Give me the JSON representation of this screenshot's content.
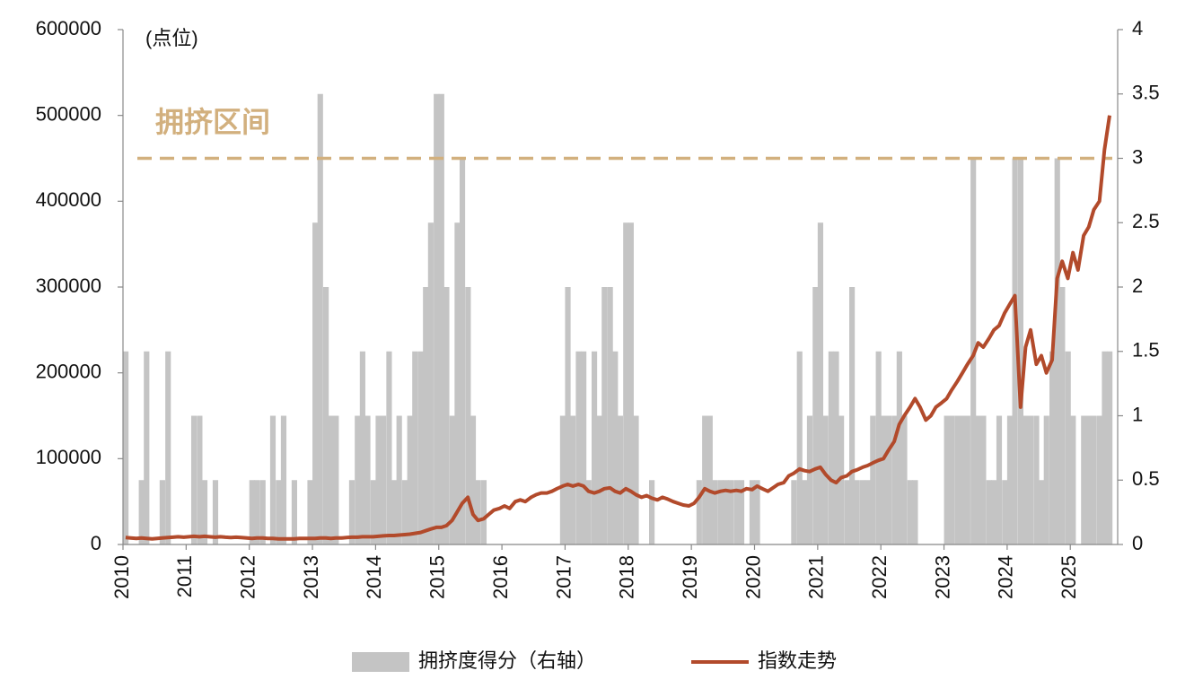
{
  "chart_data": {
    "type": "bar_line",
    "y_label": "(点位)",
    "xlim": [
      2010,
      2025.75
    ],
    "xticks": [
      2010,
      2011,
      2012,
      2013,
      2014,
      2015,
      2016,
      2017,
      2018,
      2019,
      2020,
      2021,
      2022,
      2023,
      2024,
      2025
    ],
    "ylim": [
      0,
      600000
    ],
    "yticks": [
      0,
      100000,
      200000,
      300000,
      400000,
      500000,
      600000
    ],
    "y2lim": [
      0,
      4
    ],
    "y2ticks": [
      0,
      0.5,
      1,
      1.5,
      2,
      2.5,
      3,
      3.5,
      4
    ],
    "reference_line": {
      "value": 3,
      "axis": "y2",
      "label": "拥挤区间",
      "color": "#d2b07e"
    },
    "legend": "bottom",
    "x": [
      2010.0,
      2010.08,
      2010.17,
      2010.25,
      2010.33,
      2010.42,
      2010.5,
      2010.58,
      2010.67,
      2010.75,
      2010.83,
      2010.92,
      2011.0,
      2011.08,
      2011.17,
      2011.25,
      2011.33,
      2011.42,
      2011.5,
      2011.58,
      2011.67,
      2011.75,
      2011.83,
      2011.92,
      2012.0,
      2012.08,
      2012.17,
      2012.25,
      2012.33,
      2012.42,
      2012.5,
      2012.58,
      2012.67,
      2012.75,
      2012.83,
      2012.92,
      2013.0,
      2013.08,
      2013.17,
      2013.25,
      2013.33,
      2013.42,
      2013.5,
      2013.58,
      2013.67,
      2013.75,
      2013.83,
      2013.92,
      2014.0,
      2014.08,
      2014.17,
      2014.25,
      2014.33,
      2014.42,
      2014.5,
      2014.58,
      2014.67,
      2014.75,
      2014.83,
      2014.92,
      2015.0,
      2015.08,
      2015.17,
      2015.25,
      2015.33,
      2015.42,
      2015.5,
      2015.58,
      2015.67,
      2015.75,
      2015.83,
      2015.92,
      2016.0,
      2016.08,
      2016.17,
      2016.25,
      2016.33,
      2016.42,
      2016.5,
      2016.58,
      2016.67,
      2016.75,
      2016.83,
      2016.92,
      2017.0,
      2017.08,
      2017.17,
      2017.25,
      2017.33,
      2017.42,
      2017.5,
      2017.58,
      2017.67,
      2017.75,
      2017.83,
      2017.92,
      2018.0,
      2018.08,
      2018.17,
      2018.25,
      2018.33,
      2018.42,
      2018.5,
      2018.58,
      2018.67,
      2018.75,
      2018.83,
      2018.92,
      2019.0,
      2019.08,
      2019.17,
      2019.25,
      2019.33,
      2019.42,
      2019.5,
      2019.58,
      2019.67,
      2019.75,
      2019.83,
      2019.92,
      2020.0,
      2020.08,
      2020.17,
      2020.25,
      2020.33,
      2020.42,
      2020.5,
      2020.58,
      2020.67,
      2020.75,
      2020.83,
      2020.92,
      2021.0,
      2021.08,
      2021.17,
      2021.25,
      2021.33,
      2021.42,
      2021.5,
      2021.58,
      2021.67,
      2021.75,
      2021.83,
      2021.92,
      2022.0,
      2022.08,
      2022.17,
      2022.25,
      2022.33,
      2022.42,
      2022.5,
      2022.58,
      2022.67,
      2022.75,
      2022.83,
      2022.92,
      2023.0,
      2023.08,
      2023.17,
      2023.25,
      2023.33,
      2023.42,
      2023.5,
      2023.58,
      2023.67,
      2023.75,
      2023.83,
      2023.92,
      2024.0,
      2024.08,
      2024.17,
      2024.25,
      2024.33,
      2024.42,
      2024.5,
      2024.58,
      2024.67,
      2024.75,
      2024.83,
      2024.92,
      2025.0,
      2025.08,
      2025.17,
      2025.25,
      2025.33,
      2025.42,
      2025.5,
      2025.58
    ],
    "series": [
      {
        "name": "拥挤度得分（右轴）",
        "type": "bar",
        "axis": "y2",
        "color": "#c4c4c4",
        "values": [
          1.5,
          0,
          0,
          0.5,
          1.5,
          0,
          0,
          0.5,
          1.5,
          0,
          0,
          0,
          0,
          1,
          1,
          0.5,
          0,
          0.5,
          0,
          0,
          0,
          0,
          0,
          0,
          0.5,
          0.5,
          0.5,
          0,
          1,
          0.5,
          1,
          0,
          0.5,
          0,
          0,
          0.5,
          2.5,
          3.5,
          2,
          1,
          1,
          0,
          0,
          0.5,
          1,
          1.5,
          1,
          0.5,
          1,
          1,
          1.5,
          0.5,
          1,
          0.5,
          1,
          1.5,
          1.5,
          2,
          2.5,
          3.5,
          3.5,
          2,
          1,
          2.5,
          3,
          2,
          1,
          0.5,
          0.5,
          0,
          0,
          0,
          0,
          0,
          0,
          0,
          0,
          0,
          0,
          0,
          0,
          0,
          0,
          1,
          2,
          1,
          1.5,
          1.5,
          0.5,
          1.5,
          1,
          2,
          2,
          1.5,
          1,
          2.5,
          2.5,
          1,
          0,
          0,
          0.5,
          0,
          0,
          0,
          0,
          0,
          0,
          0,
          0,
          0.5,
          1,
          1,
          0.5,
          0.5,
          0.5,
          0.5,
          0.5,
          0.5,
          0,
          0.5,
          0.5,
          0,
          0,
          0,
          0,
          0,
          0,
          0.5,
          1.5,
          0.5,
          1,
          2,
          2.5,
          1,
          1.5,
          1.5,
          1,
          0.5,
          2,
          0.5,
          0.5,
          0.5,
          1,
          1.5,
          1,
          1,
          1,
          1.5,
          1,
          0.5,
          0.5,
          0,
          0,
          0,
          0,
          0,
          1,
          1,
          1,
          1,
          1,
          3,
          1,
          1,
          0.5,
          0.5,
          1,
          0.5,
          1,
          3,
          3,
          1,
          1,
          1,
          0.5,
          1,
          1.5,
          3,
          2,
          1.5,
          1,
          0,
          1,
          1,
          1,
          1,
          1.5,
          1.5
        ]
      },
      {
        "name": "指数走势",
        "type": "line",
        "color": "#b24a2b",
        "values": [
          8000,
          7500,
          7000,
          7500,
          7000,
          6500,
          7000,
          7500,
          8000,
          8500,
          9000,
          8500,
          9000,
          9500,
          9000,
          9500,
          9000,
          8500,
          9000,
          8500,
          8000,
          8500,
          8000,
          7500,
          7000,
          7500,
          7500,
          7000,
          7000,
          6500,
          6500,
          6500,
          6500,
          7000,
          7000,
          7000,
          7000,
          7500,
          7500,
          7000,
          7500,
          7500,
          8000,
          8500,
          8500,
          9000,
          9000,
          9000,
          9500,
          10000,
          10500,
          10500,
          11000,
          11500,
          12000,
          13000,
          14000,
          16000,
          18000,
          20000,
          20000,
          22000,
          28000,
          38000,
          48000,
          55000,
          35000,
          28000,
          30000,
          35000,
          40000,
          42000,
          45000,
          42000,
          50000,
          52000,
          50000,
          55000,
          58000,
          60000,
          60000,
          62000,
          65000,
          68000,
          70000,
          68000,
          70000,
          68000,
          62000,
          60000,
          62000,
          65000,
          66000,
          62000,
          60000,
          65000,
          62000,
          58000,
          55000,
          57000,
          54000,
          52000,
          55000,
          53000,
          50000,
          48000,
          46000,
          45000,
          48000,
          55000,
          65000,
          62000,
          60000,
          62000,
          63000,
          62000,
          63000,
          62000,
          65000,
          64000,
          68000,
          65000,
          62000,
          66000,
          70000,
          72000,
          80000,
          83000,
          88000,
          86000,
          85000,
          88000,
          90000,
          82000,
          75000,
          72000,
          78000,
          80000,
          85000,
          87000,
          90000,
          92000,
          95000,
          98000,
          100000,
          110000,
          120000,
          140000,
          150000,
          160000,
          170000,
          160000,
          145000,
          150000,
          160000,
          165000,
          170000,
          180000,
          190000,
          200000,
          210000,
          220000,
          235000,
          230000,
          240000,
          250000,
          255000,
          270000,
          280000,
          290000,
          160000,
          230000,
          250000,
          210000,
          220000,
          200000,
          215000,
          310000,
          330000,
          310000,
          340000,
          320000,
          360000,
          370000,
          390000,
          400000,
          460000,
          500000
        ]
      }
    ]
  }
}
